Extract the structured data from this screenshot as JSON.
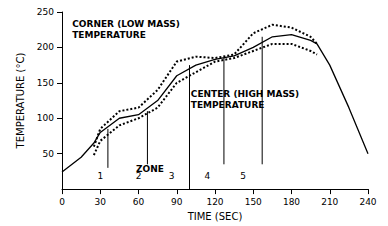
{
  "chart_data": {
    "type": "line",
    "x_label": "TIME (SEC)",
    "y_label": "TEMPERATURE (°C)",
    "xlim": [
      0,
      240
    ],
    "xticks": [
      0,
      30,
      60,
      90,
      120,
      150,
      180,
      210,
      240
    ],
    "ylim": [
      0,
      250
    ],
    "yticks": [
      50,
      100,
      150,
      200,
      250
    ],
    "grid": false,
    "x": [
      0,
      15,
      25,
      30,
      45,
      60,
      75,
      90,
      105,
      120,
      135,
      150,
      165,
      180,
      195,
      200,
      210,
      225,
      240
    ],
    "series": [
      {
        "color": "#000000",
        "line_style": "dotted",
        "values": [
          null,
          null,
          60,
          85,
          110,
          115,
          140,
          180,
          187,
          185,
          190,
          220,
          232,
          228,
          215,
          205,
          null,
          null,
          null
        ]
      },
      {
        "color": "#000000",
        "line_style": "solid",
        "values": [
          24,
          45,
          65,
          80,
          100,
          105,
          125,
          160,
          175,
          183,
          188,
          200,
          215,
          218,
          210,
          205,
          175,
          115,
          50
        ]
      },
      {
        "color": "#000000",
        "line_style": "dotted",
        "values": [
          null,
          null,
          48,
          68,
          90,
          100,
          115,
          150,
          165,
          180,
          185,
          195,
          205,
          205,
          195,
          190,
          null,
          null,
          null
        ]
      }
    ],
    "annotations": [
      {
        "lines": [
          "CORNER (LOW MASS)",
          "TEMPERATURE"
        ],
        "x": 8,
        "y": 240
      },
      {
        "lines": [
          "CENTER (HIGH MASS)",
          "TEMPERATURE"
        ],
        "x": 101,
        "y": 140
      },
      {
        "lines": [
          "ZONE"
        ],
        "x": 58,
        "y": 35
      }
    ],
    "zone_labels": [
      {
        "text": "1",
        "x": 30,
        "y": 12
      },
      {
        "text": "2",
        "x": 60,
        "y": 12
      },
      {
        "text": "3",
        "x": 86,
        "y": 12
      },
      {
        "text": "4",
        "x": 114,
        "y": 12
      },
      {
        "text": "5",
        "x": 142,
        "y": 12
      }
    ],
    "zone_lines": [
      {
        "x": 36,
        "y": [
          30,
          85
        ]
      },
      {
        "x": 67,
        "y": [
          35,
          110
        ]
      },
      {
        "x": 100,
        "y": [
          0,
          175
        ]
      },
      {
        "x": 127,
        "y": [
          35,
          185
        ]
      },
      {
        "x": 157,
        "y": [
          35,
          215
        ]
      }
    ]
  }
}
